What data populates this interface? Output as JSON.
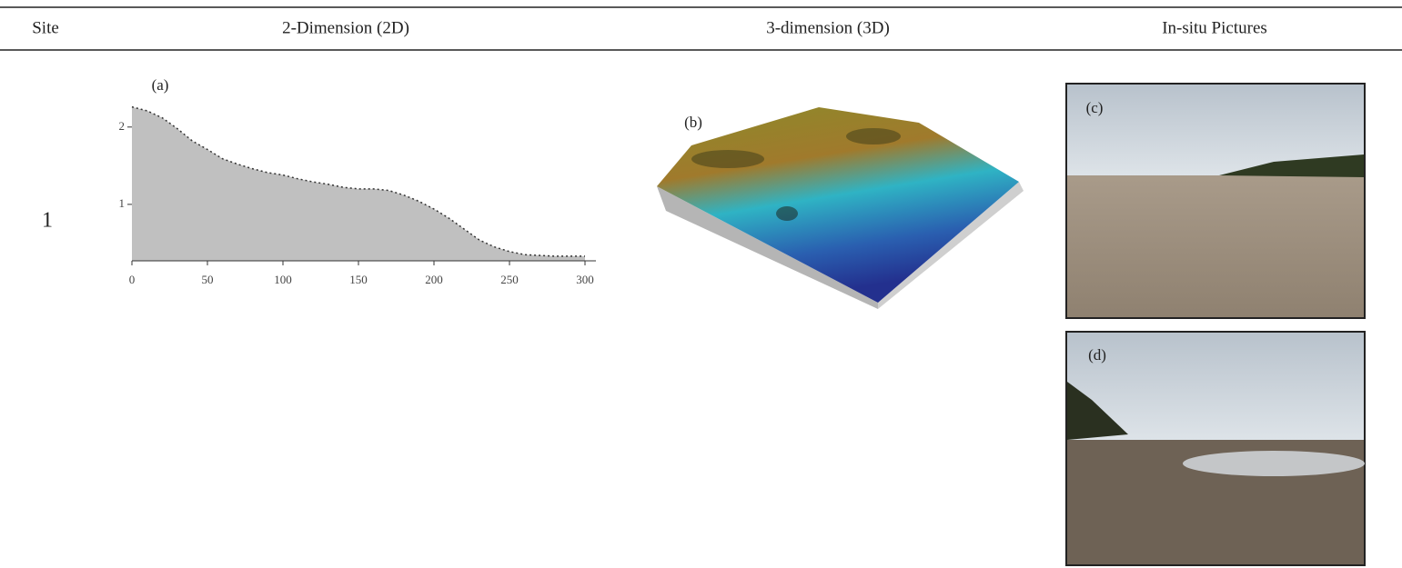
{
  "header": {
    "columns": [
      "Site",
      "2-Dimension (2D)",
      "3-dimension (3D)",
      "In-situ Pictures"
    ]
  },
  "rows": [
    {
      "site": "1",
      "panels": [
        "(a)",
        "(b)",
        "(c)",
        "(d)"
      ]
    }
  ],
  "chart_data": {
    "type": "area",
    "x": [
      0,
      10,
      20,
      30,
      40,
      50,
      60,
      70,
      80,
      90,
      100,
      110,
      120,
      130,
      140,
      150,
      160,
      170,
      180,
      190,
      200,
      210,
      220,
      230,
      240,
      250,
      260,
      270,
      280,
      290,
      300
    ],
    "values": [
      2.26,
      2.21,
      2.12,
      1.98,
      1.82,
      1.71,
      1.59,
      1.52,
      1.46,
      1.41,
      1.38,
      1.33,
      1.29,
      1.26,
      1.22,
      1.2,
      1.2,
      1.18,
      1.12,
      1.04,
      0.94,
      0.82,
      0.68,
      0.54,
      0.45,
      0.39,
      0.35,
      0.34,
      0.33,
      0.33,
      0.33
    ],
    "color": "#c0c0c0",
    "xlim": [
      0,
      300
    ],
    "xticks": [
      0,
      50,
      100,
      150,
      200,
      250,
      300
    ],
    "ylim": [
      0.27,
      2.35
    ],
    "yticks": [
      1,
      2
    ]
  }
}
